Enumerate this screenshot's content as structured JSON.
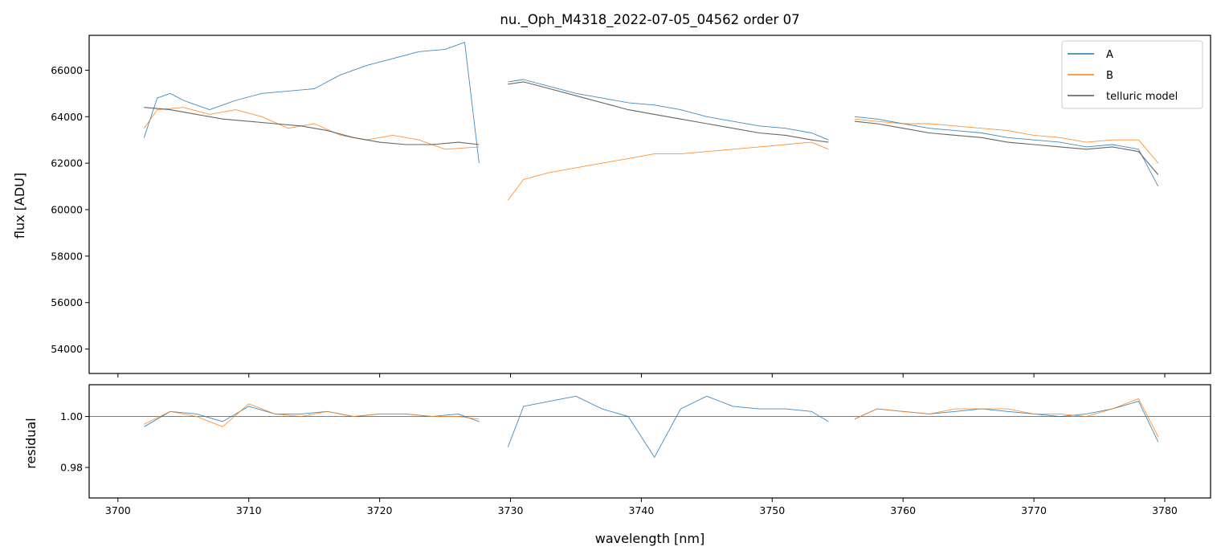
{
  "chart_data": [
    {
      "type": "line",
      "title": "nu._Oph_M4318_2022-07-05_04562  order 07",
      "xlabel": "",
      "ylabel": "flux [ADU]",
      "xlim": [
        3697.8,
        3783.5
      ],
      "ylim": [
        52950,
        67500
      ],
      "yticks": [
        54000,
        56000,
        58000,
        60000,
        62000,
        64000,
        66000
      ],
      "ytick_labels": [
        "54000",
        "56000",
        "58000",
        "60000",
        "62000",
        "64000",
        "66000"
      ],
      "xticks": [
        3700,
        3710,
        3720,
        3730,
        3740,
        3750,
        3760,
        3770,
        3780
      ],
      "legend_position": "top-right",
      "series": [
        {
          "name": "A",
          "color": "#1f77b4",
          "segments": [
            {
              "x": [
                3702.0,
                3703.0,
                3704.0,
                3705.0,
                3707.0,
                3709.0,
                3711.0,
                3713.0,
                3715.0,
                3717.0,
                3719.0,
                3721.0,
                3723.0,
                3725.0,
                3726.5,
                3727.6
              ],
              "y": [
                63100,
                64800,
                65000,
                64700,
                64300,
                64700,
                65000,
                65100,
                65200,
                65800,
                66200,
                66500,
                66800,
                66900,
                67200,
                62000
              ]
            },
            {
              "x": [
                3729.8,
                3731.0,
                3733.0,
                3735.0,
                3737.0,
                3739.0,
                3741.0,
                3743.0,
                3745.0,
                3747.0,
                3749.0,
                3751.0,
                3753.0,
                3754.3
              ],
              "y": [
                65500,
                65600,
                65300,
                65000,
                64800,
                64600,
                64500,
                64300,
                64000,
                63800,
                63600,
                63500,
                63300,
                63000
              ]
            },
            {
              "x": [
                3756.3,
                3758.0,
                3760.0,
                3762.0,
                3764.0,
                3766.0,
                3768.0,
                3770.0,
                3772.0,
                3774.0,
                3776.0,
                3778.0,
                3779.5
              ],
              "y": [
                64000,
                63900,
                63700,
                63500,
                63400,
                63300,
                63100,
                63000,
                62900,
                62700,
                62800,
                62600,
                61000
              ]
            }
          ]
        },
        {
          "name": "B",
          "color": "#ff7f0e",
          "segments": [
            {
              "x": [
                3702.0,
                3703.0,
                3705.0,
                3707.0,
                3709.0,
                3711.0,
                3713.0,
                3715.0,
                3717.0,
                3719.0,
                3721.0,
                3723.0,
                3725.0,
                3727.6
              ],
              "y": [
                63500,
                64300,
                64400,
                64100,
                64300,
                64000,
                63500,
                63700,
                63200,
                63000,
                63200,
                63000,
                62600,
                62700
              ]
            },
            {
              "x": [
                3729.8,
                3731.0,
                3733.0,
                3735.0,
                3737.0,
                3739.0,
                3741.0,
                3743.0,
                3745.0,
                3747.0,
                3749.0,
                3751.0,
                3753.0,
                3754.3
              ],
              "y": [
                60400,
                61300,
                61600,
                61800,
                62000,
                62200,
                62400,
                62400,
                62500,
                62600,
                62700,
                62800,
                62900,
                62600
              ]
            },
            {
              "x": [
                3756.3,
                3758.0,
                3760.0,
                3762.0,
                3764.0,
                3766.0,
                3768.0,
                3770.0,
                3772.0,
                3774.0,
                3776.0,
                3778.0,
                3779.5
              ],
              "y": [
                63900,
                63800,
                63700,
                63700,
                63600,
                63500,
                63400,
                63200,
                63100,
                62900,
                63000,
                63000,
                62000
              ]
            }
          ]
        },
        {
          "name": "telluric model",
          "color": "#555555",
          "segments": [
            {
              "x": [
                3702.0,
                3704.0,
                3706.0,
                3708.0,
                3710.0,
                3712.0,
                3714.0,
                3716.0,
                3718.0,
                3720.0,
                3722.0,
                3724.0,
                3726.0,
                3727.6
              ],
              "y": [
                64400,
                64300,
                64100,
                63900,
                63800,
                63700,
                63600,
                63400,
                63100,
                62900,
                62800,
                62800,
                62900,
                62800
              ]
            },
            {
              "x": [
                3729.8,
                3731.0,
                3733.0,
                3735.0,
                3737.0,
                3739.0,
                3741.0,
                3743.0,
                3745.0,
                3747.0,
                3749.0,
                3751.0,
                3753.0,
                3754.3
              ],
              "y": [
                65400,
                65500,
                65200,
                64900,
                64600,
                64300,
                64100,
                63900,
                63700,
                63500,
                63300,
                63200,
                63000,
                62900
              ]
            },
            {
              "x": [
                3756.3,
                3758.0,
                3760.0,
                3762.0,
                3764.0,
                3766.0,
                3768.0,
                3770.0,
                3772.0,
                3774.0,
                3776.0,
                3778.0,
                3779.5
              ],
              "y": [
                63800,
                63700,
                63500,
                63300,
                63200,
                63100,
                62900,
                62800,
                62700,
                62600,
                62700,
                62500,
                61500
              ]
            }
          ]
        }
      ]
    },
    {
      "type": "line",
      "title": "",
      "xlabel": "wavelength [nm]",
      "ylabel": "residual",
      "xlim": [
        3697.8,
        3783.5
      ],
      "ylim": [
        0.968,
        1.0125
      ],
      "yticks": [
        0.98,
        1.0
      ],
      "ytick_labels": [
        "0.98",
        "1.00"
      ],
      "xticks": [
        3700,
        3710,
        3720,
        3730,
        3740,
        3750,
        3760,
        3770,
        3780
      ],
      "xtick_labels": [
        "3700",
        "3710",
        "3720",
        "3730",
        "3740",
        "3750",
        "3760",
        "3770",
        "3780"
      ],
      "reference_line": 1.0,
      "series": [
        {
          "name": "A",
          "color": "#1f77b4",
          "segments": [
            {
              "x": [
                3702.0,
                3704.0,
                3706.0,
                3708.0,
                3710.0,
                3712.0,
                3714.0,
                3716.0,
                3718.0,
                3720.0,
                3722.0,
                3724.0,
                3726.0,
                3727.6
              ],
              "y": [
                0.996,
                1.002,
                1.001,
                0.998,
                1.004,
                1.001,
                1.001,
                1.002,
                1.0,
                1.001,
                1.001,
                1.0,
                1.001,
                0.998
              ]
            },
            {
              "x": [
                3729.8,
                3731.0,
                3733.0,
                3735.0,
                3737.0,
                3739.0,
                3741.0,
                3743.0,
                3745.0,
                3747.0,
                3749.0,
                3751.0,
                3753.0,
                3754.3
              ],
              "y": [
                0.988,
                1.004,
                1.006,
                1.008,
                1.003,
                1.0,
                0.984,
                1.003,
                1.008,
                1.004,
                1.003,
                1.003,
                1.002,
                0.998
              ]
            },
            {
              "x": [
                3756.3,
                3758.0,
                3760.0,
                3762.0,
                3764.0,
                3766.0,
                3768.0,
                3770.0,
                3772.0,
                3774.0,
                3776.0,
                3778.0,
                3779.5
              ],
              "y": [
                0.999,
                1.003,
                1.002,
                1.001,
                1.002,
                1.003,
                1.002,
                1.001,
                1.0,
                1.001,
                1.003,
                1.006,
                0.99
              ]
            }
          ]
        },
        {
          "name": "B",
          "color": "#ff7f0e",
          "segments": [
            {
              "x": [
                3702.0,
                3704.0,
                3706.0,
                3708.0,
                3710.0,
                3712.0,
                3714.0,
                3716.0,
                3718.0,
                3720.0,
                3722.0,
                3724.0,
                3726.0,
                3727.6
              ],
              "y": [
                0.997,
                1.002,
                1.0,
                0.996,
                1.005,
                1.001,
                1.0,
                1.002,
                1.0,
                1.001,
                1.001,
                1.0,
                1.0,
                0.999
              ]
            },
            {
              "x": [
                3756.3,
                3758.0,
                3760.0,
                3762.0,
                3764.0,
                3766.0,
                3768.0,
                3770.0,
                3772.0,
                3774.0,
                3776.0,
                3778.0,
                3779.5
              ],
              "y": [
                0.999,
                1.003,
                1.002,
                1.001,
                1.003,
                1.003,
                1.003,
                1.001,
                1.001,
                1.0,
                1.003,
                1.007,
                0.992
              ]
            }
          ]
        }
      ]
    }
  ]
}
